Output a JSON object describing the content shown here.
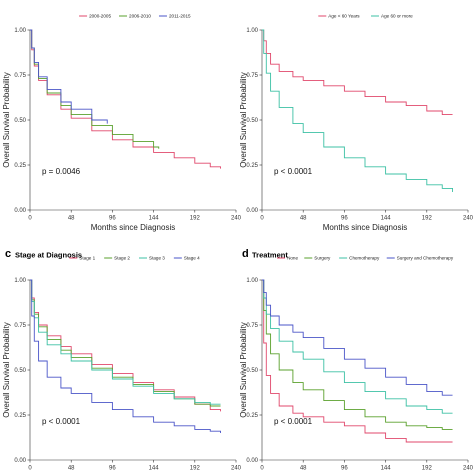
{
  "chart_data": [
    {
      "type": "line",
      "panel_letter": "",
      "title": "",
      "xlabel": "Months since Diagnosis",
      "ylabel": "Overall Survival Probability",
      "xlim": [
        0,
        240
      ],
      "ylim": [
        0,
        1
      ],
      "xticks": [
        0,
        48,
        96,
        144,
        192,
        240
      ],
      "yticks": [
        0,
        0.25,
        0.5,
        0.75,
        1
      ],
      "legend": "top",
      "annotation": "p = 0.0046",
      "series": [
        {
          "name": "2000-2005",
          "color": "#e0476b",
          "x": [
            0,
            2,
            5,
            10,
            20,
            36,
            48,
            72,
            96,
            120,
            144,
            168,
            192,
            210,
            222
          ],
          "y": [
            1.0,
            0.89,
            0.8,
            0.72,
            0.64,
            0.56,
            0.51,
            0.44,
            0.39,
            0.35,
            0.32,
            0.29,
            0.26,
            0.24,
            0.23
          ]
        },
        {
          "name": "2006-2010",
          "color": "#5aa02c",
          "x": [
            0,
            2,
            5,
            10,
            20,
            36,
            48,
            72,
            96,
            120,
            144,
            150
          ],
          "y": [
            1.0,
            0.9,
            0.81,
            0.73,
            0.65,
            0.58,
            0.53,
            0.47,
            0.42,
            0.38,
            0.35,
            0.34
          ]
        },
        {
          "name": "2011-2015",
          "color": "#4a55c8",
          "x": [
            0,
            2,
            5,
            10,
            20,
            36,
            48,
            72,
            90
          ],
          "y": [
            1.0,
            0.9,
            0.82,
            0.74,
            0.67,
            0.6,
            0.56,
            0.5,
            0.48
          ]
        }
      ]
    },
    {
      "type": "line",
      "panel_letter": "",
      "title": "",
      "xlabel": "Months since Diagnosis",
      "ylabel": "Overall Survival Probability",
      "xlim": [
        0,
        240
      ],
      "ylim": [
        0,
        1
      ],
      "xticks": [
        0,
        48,
        96,
        144,
        192,
        240
      ],
      "yticks": [
        0,
        0.25,
        0.5,
        0.75,
        1
      ],
      "legend": "top",
      "annotation": "p < 0.0001",
      "series": [
        {
          "name": "Age < 60 Years",
          "color": "#e0476b",
          "x": [
            0,
            2,
            5,
            10,
            20,
            36,
            48,
            72,
            96,
            120,
            144,
            168,
            192,
            210,
            222
          ],
          "y": [
            1.0,
            0.94,
            0.87,
            0.81,
            0.77,
            0.74,
            0.72,
            0.69,
            0.66,
            0.63,
            0.6,
            0.58,
            0.55,
            0.53,
            0.53
          ]
        },
        {
          "name": "Age 60 or more",
          "color": "#3cc0a4",
          "x": [
            0,
            2,
            5,
            10,
            20,
            36,
            48,
            72,
            96,
            120,
            144,
            168,
            192,
            210,
            222
          ],
          "y": [
            1.0,
            0.87,
            0.76,
            0.66,
            0.57,
            0.48,
            0.43,
            0.35,
            0.29,
            0.24,
            0.2,
            0.17,
            0.14,
            0.12,
            0.1
          ]
        }
      ]
    },
    {
      "type": "line",
      "panel_letter": "c",
      "title": "Stage at Diagnosis",
      "xlabel": "",
      "ylabel": "Overall Survival Probability",
      "xlim": [
        0,
        240
      ],
      "ylim": [
        0,
        1
      ],
      "xticks": [
        0,
        48,
        96,
        144,
        192,
        240
      ],
      "yticks": [
        0,
        0.25,
        0.5,
        0.75,
        1
      ],
      "legend": "top",
      "annotation": "p < 0.0001",
      "series": [
        {
          "name": "Stage 1",
          "color": "#e0476b",
          "x": [
            0,
            2,
            5,
            10,
            20,
            36,
            48,
            72,
            96,
            120,
            144,
            168,
            192,
            210,
            222
          ],
          "y": [
            1.0,
            0.9,
            0.82,
            0.75,
            0.69,
            0.63,
            0.59,
            0.53,
            0.48,
            0.43,
            0.39,
            0.35,
            0.31,
            0.28,
            0.27
          ]
        },
        {
          "name": "Stage 2",
          "color": "#5aa02c",
          "x": [
            0,
            2,
            5,
            10,
            20,
            36,
            48,
            72,
            96,
            120,
            144,
            168,
            192,
            210,
            222
          ],
          "y": [
            1.0,
            0.89,
            0.81,
            0.74,
            0.67,
            0.61,
            0.57,
            0.51,
            0.46,
            0.42,
            0.38,
            0.34,
            0.31,
            0.3,
            0.3
          ]
        },
        {
          "name": "Stage 3",
          "color": "#3cc0a4",
          "x": [
            0,
            2,
            5,
            10,
            20,
            36,
            48,
            72,
            96,
            120,
            144,
            168,
            192,
            210,
            222
          ],
          "y": [
            1.0,
            0.88,
            0.79,
            0.71,
            0.64,
            0.59,
            0.55,
            0.5,
            0.45,
            0.41,
            0.37,
            0.34,
            0.32,
            0.31,
            0.31
          ]
        },
        {
          "name": "Stage 4",
          "color": "#4a55c8",
          "x": [
            0,
            2,
            5,
            10,
            20,
            36,
            48,
            72,
            96,
            120,
            144,
            168,
            192,
            210,
            222
          ],
          "y": [
            1.0,
            0.8,
            0.66,
            0.55,
            0.46,
            0.4,
            0.37,
            0.32,
            0.28,
            0.24,
            0.21,
            0.19,
            0.17,
            0.16,
            0.15
          ]
        }
      ]
    },
    {
      "type": "line",
      "panel_letter": "d",
      "title": "Treatment",
      "xlabel": "",
      "ylabel": "Overall Survival Probability",
      "xlim": [
        0,
        240
      ],
      "ylim": [
        0,
        1
      ],
      "xticks": [
        0,
        48,
        96,
        144,
        192,
        240
      ],
      "yticks": [
        0,
        0.25,
        0.5,
        0.75,
        1
      ],
      "legend": "top",
      "annotation": "p < 0.0001",
      "series": [
        {
          "name": "None",
          "color": "#e0476b",
          "x": [
            0,
            2,
            5,
            10,
            20,
            36,
            48,
            72,
            96,
            120,
            144,
            168,
            192,
            210,
            222
          ],
          "y": [
            1.0,
            0.65,
            0.47,
            0.37,
            0.3,
            0.26,
            0.24,
            0.21,
            0.19,
            0.15,
            0.12,
            0.1,
            0.1,
            0.1,
            0.1
          ]
        },
        {
          "name": "Surgery",
          "color": "#5aa02c",
          "x": [
            0,
            2,
            5,
            10,
            20,
            36,
            48,
            72,
            96,
            120,
            144,
            168,
            192,
            210,
            222
          ],
          "y": [
            1.0,
            0.83,
            0.7,
            0.59,
            0.5,
            0.43,
            0.39,
            0.33,
            0.28,
            0.24,
            0.21,
            0.19,
            0.18,
            0.17,
            0.17
          ]
        },
        {
          "name": "Chemotherapy",
          "color": "#3cc0a4",
          "x": [
            0,
            2,
            5,
            10,
            20,
            36,
            48,
            72,
            96,
            120,
            144,
            168,
            192,
            210,
            222
          ],
          "y": [
            1.0,
            0.9,
            0.81,
            0.73,
            0.66,
            0.6,
            0.56,
            0.49,
            0.43,
            0.38,
            0.34,
            0.3,
            0.28,
            0.26,
            0.26
          ]
        },
        {
          "name": "Surgery and Chemotherapy",
          "color": "#4a55c8",
          "x": [
            0,
            2,
            5,
            10,
            20,
            36,
            48,
            72,
            96,
            120,
            144,
            168,
            192,
            210,
            222
          ],
          "y": [
            1.0,
            0.93,
            0.86,
            0.8,
            0.75,
            0.71,
            0.68,
            0.62,
            0.56,
            0.51,
            0.46,
            0.42,
            0.38,
            0.36,
            0.36
          ]
        }
      ]
    }
  ]
}
